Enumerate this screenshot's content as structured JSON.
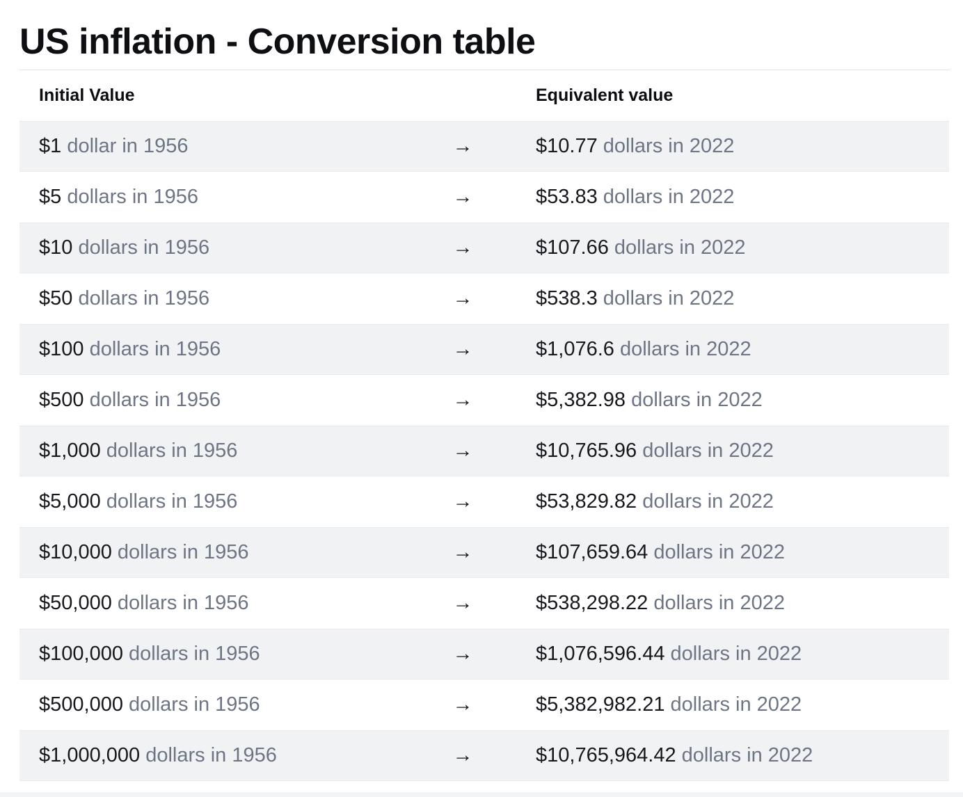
{
  "page": {
    "title": "US inflation - Conversion table"
  },
  "table": {
    "columns": [
      "Initial Value",
      "Equivalent value"
    ],
    "arrow_glyph": "→",
    "rows": [
      {
        "initial_amount": "$1",
        "initial_rest": "dollar in 1956",
        "equivalent_amount": "$10.77",
        "equivalent_rest": "dollars in 2022"
      },
      {
        "initial_amount": "$5",
        "initial_rest": "dollars in 1956",
        "equivalent_amount": "$53.83",
        "equivalent_rest": "dollars in 2022"
      },
      {
        "initial_amount": "$10",
        "initial_rest": "dollars in 1956",
        "equivalent_amount": "$107.66",
        "equivalent_rest": "dollars in 2022"
      },
      {
        "initial_amount": "$50",
        "initial_rest": "dollars in 1956",
        "equivalent_amount": "$538.3",
        "equivalent_rest": "dollars in 2022"
      },
      {
        "initial_amount": "$100",
        "initial_rest": "dollars in 1956",
        "equivalent_amount": "$1,076.6",
        "equivalent_rest": "dollars in 2022"
      },
      {
        "initial_amount": "$500",
        "initial_rest": "dollars in 1956",
        "equivalent_amount": "$5,382.98",
        "equivalent_rest": "dollars in 2022"
      },
      {
        "initial_amount": "$1,000",
        "initial_rest": "dollars in 1956",
        "equivalent_amount": "$10,765.96",
        "equivalent_rest": "dollars in 2022"
      },
      {
        "initial_amount": "$5,000",
        "initial_rest": "dollars in 1956",
        "equivalent_amount": "$53,829.82",
        "equivalent_rest": "dollars in 2022"
      },
      {
        "initial_amount": "$10,000",
        "initial_rest": "dollars in 1956",
        "equivalent_amount": "$107,659.64",
        "equivalent_rest": "dollars in 2022"
      },
      {
        "initial_amount": "$50,000",
        "initial_rest": "dollars in 1956",
        "equivalent_amount": "$538,298.22",
        "equivalent_rest": "dollars in 2022"
      },
      {
        "initial_amount": "$100,000",
        "initial_rest": "dollars in 1956",
        "equivalent_amount": "$1,076,596.44",
        "equivalent_rest": "dollars in 2022"
      },
      {
        "initial_amount": "$500,000",
        "initial_rest": "dollars in 1956",
        "equivalent_amount": "$5,382,982.21",
        "equivalent_rest": "dollars in 2022"
      },
      {
        "initial_amount": "$1,000,000",
        "initial_rest": "dollars in 1956",
        "equivalent_amount": "$10,765,964.42",
        "equivalent_rest": "dollars in 2022"
      }
    ]
  },
  "colors": {
    "stripe_background": "#f1f2f4",
    "dark_text": "#16181d",
    "muted_text": "#6d7584",
    "rule": "#e2e4e7"
  }
}
